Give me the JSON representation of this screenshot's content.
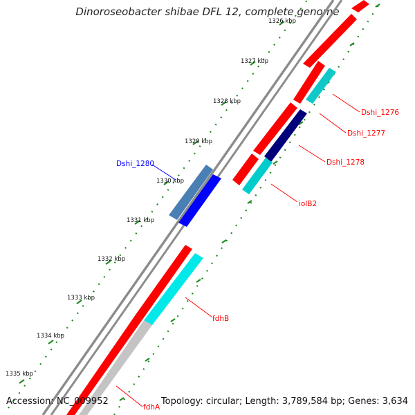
{
  "title": "Dinoroseobacter shibae DFL 12, complete genome",
  "footer": {
    "accession": "Accession: NC_009952",
    "summary": "Topology: circular; Length: 3,789,584 bp; Genes: 3,634"
  },
  "colors": {
    "backbone": "#8c8c8c",
    "tick": "#1f8a1f",
    "dots": "#1f8a1f",
    "cds_forward": "#ff0000",
    "cds_reverse": "#ff0000",
    "rna_grey": "#c4c4c4",
    "label_red": "#ff0000",
    "label_blue": "#0000ff"
  },
  "ticks": [
    {
      "text": "1326 kbp"
    },
    {
      "text": "1327 kbp"
    },
    {
      "text": "1328 kbp"
    },
    {
      "text": "1329 kbp"
    },
    {
      "text": "1330 kbp"
    },
    {
      "text": "1331 kbp"
    },
    {
      "text": "1332 kbp"
    },
    {
      "text": "1333 kbp"
    },
    {
      "text": "1334 kbp"
    },
    {
      "text": "1335 kbp"
    }
  ],
  "gene_labels": [
    {
      "text": "Dshi_1276",
      "color": "#ff0000"
    },
    {
      "text": "Dshi_1277",
      "color": "#ff0000"
    },
    {
      "text": "Dshi_1278",
      "color": "#ff0000"
    },
    {
      "text": "iolB2",
      "color": "#ff0000"
    },
    {
      "text": "Dshi_1280",
      "color": "#0000ff"
    },
    {
      "text": "fdhB",
      "color": "#ff0000"
    },
    {
      "text": "fdhA",
      "color": "#ff0000"
    }
  ]
}
